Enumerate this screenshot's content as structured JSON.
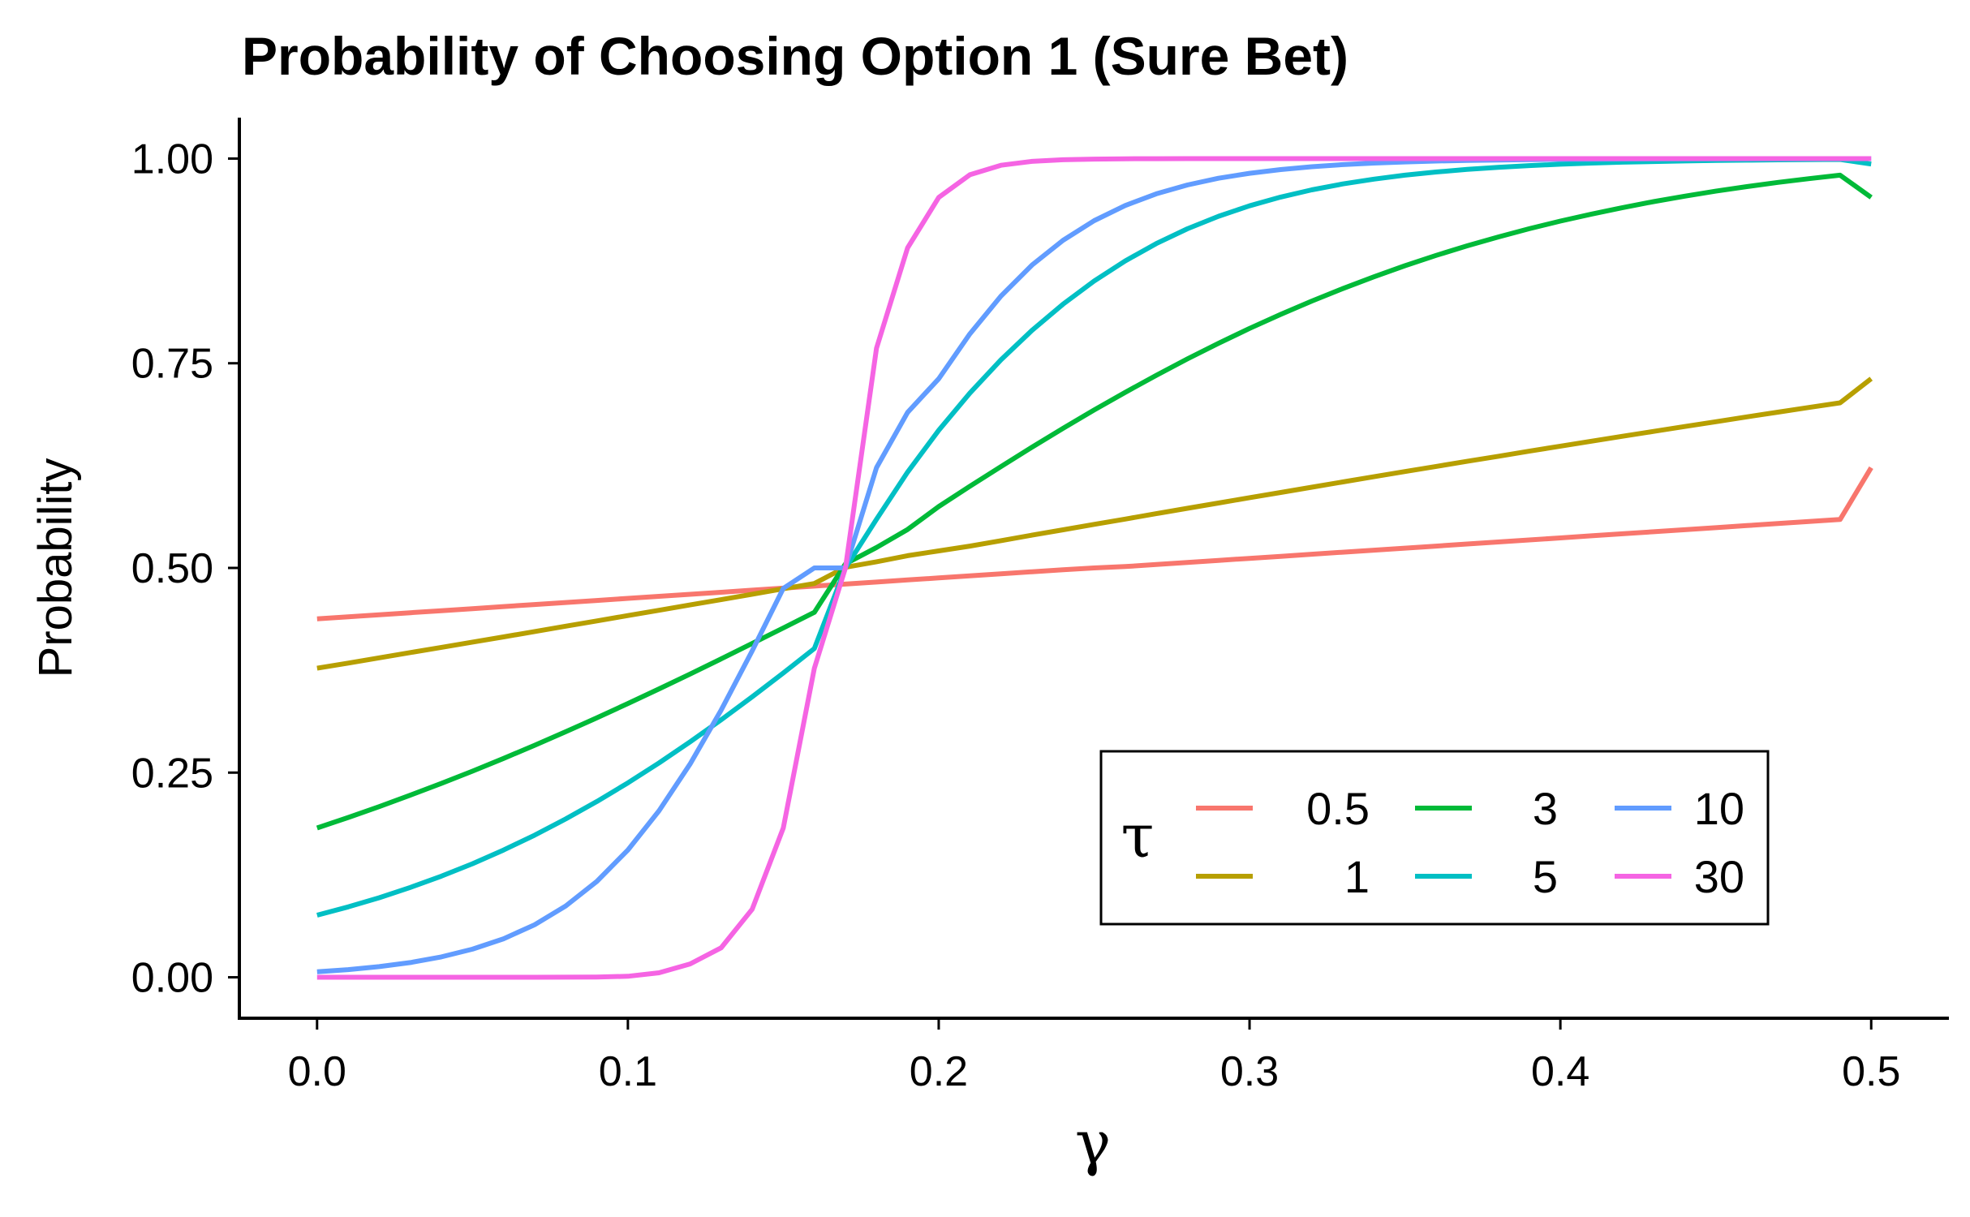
{
  "chart_data": {
    "type": "line",
    "title": "Probability of Choosing Option 1 (Sure Bet)",
    "xlabel": "γ",
    "ylabel": "Probability",
    "xlim": [
      -0.025,
      0.525
    ],
    "ylim": [
      -0.05,
      1.05
    ],
    "x_ticks": [
      0.0,
      0.1,
      0.2,
      0.3,
      0.4,
      0.5
    ],
    "x_tick_labels": [
      "0.0",
      "0.1",
      "0.2",
      "0.3",
      "0.4",
      "0.5"
    ],
    "y_ticks": [
      0.0,
      0.25,
      0.5,
      0.75,
      1.0
    ],
    "y_tick_labels": [
      "0.00",
      "0.25",
      "0.50",
      "0.75",
      "1.00"
    ],
    "grid": false,
    "legend": {
      "title": "τ",
      "position": "bottom-right",
      "columns": 3
    },
    "x": [
      0.0,
      0.01,
      0.02,
      0.03,
      0.04,
      0.05,
      0.06,
      0.07,
      0.08,
      0.09,
      0.1,
      0.11,
      0.12,
      0.13,
      0.14,
      0.15,
      0.16,
      0.17,
      0.18,
      0.19,
      0.2,
      0.21,
      0.22,
      0.23,
      0.24,
      0.25,
      0.26,
      0.27,
      0.28,
      0.29,
      0.3,
      0.31,
      0.32,
      0.33,
      0.34,
      0.35,
      0.36,
      0.37,
      0.38,
      0.39,
      0.4,
      0.41,
      0.42,
      0.43,
      0.44,
      0.45,
      0.46,
      0.47,
      0.48,
      0.49,
      0.5
    ],
    "series": [
      {
        "name": "0.5",
        "color": "#F8766D",
        "values": [
          0.4378,
          0.4403,
          0.4428,
          0.4453,
          0.4478,
          0.4503,
          0.4528,
          0.4553,
          0.4578,
          0.4603,
          0.4628,
          0.4653,
          0.4678,
          0.4703,
          0.4728,
          0.4753,
          0.4778,
          0.4803,
          0.4828,
          0.4853,
          0.4878,
          0.4903,
          0.4928,
          0.4953,
          0.4978,
          0.5,
          0.5017,
          0.5042,
          0.5067,
          0.5092,
          0.5117,
          0.5142,
          0.5167,
          0.5192,
          0.5217,
          0.5242,
          0.5267,
          0.5292,
          0.5317,
          0.5342,
          0.5367,
          0.5392,
          0.5417,
          0.5442,
          0.5467,
          0.5492,
          0.5517,
          0.5542,
          0.5567,
          0.5592,
          0.6225
        ]
      },
      {
        "name": "1",
        "color": "#B79F00",
        "values": [
          0.3775,
          0.3838,
          0.3902,
          0.3966,
          0.403,
          0.4094,
          0.4158,
          0.4223,
          0.4288,
          0.4353,
          0.4418,
          0.4483,
          0.4548,
          0.4613,
          0.4679,
          0.4745,
          0.481,
          0.5008,
          0.5075,
          0.515,
          0.5208,
          0.5267,
          0.5333,
          0.54,
          0.5466,
          0.5532,
          0.5597,
          0.5663,
          0.5728,
          0.5793,
          0.5858,
          0.5922,
          0.5986,
          0.605,
          0.6114,
          0.6177,
          0.624,
          0.6302,
          0.6364,
          0.6426,
          0.6487,
          0.6548,
          0.6608,
          0.6668,
          0.6727,
          0.6786,
          0.6845,
          0.6903,
          0.696,
          0.7017,
          0.7311
        ]
      },
      {
        "name": "3",
        "color": "#00BA38",
        "values": [
          0.1824,
          0.1952,
          0.2085,
          0.2224,
          0.2368,
          0.2518,
          0.2673,
          0.2834,
          0.2999,
          0.3169,
          0.3344,
          0.3522,
          0.3704,
          0.3889,
          0.4077,
          0.4267,
          0.4458,
          0.505,
          0.525,
          0.547,
          0.575,
          0.5997,
          0.6238,
          0.6475,
          0.6705,
          0.6929,
          0.7145,
          0.7353,
          0.7553,
          0.7743,
          0.7925,
          0.8097,
          0.8259,
          0.8412,
          0.8556,
          0.8691,
          0.8817,
          0.8934,
          0.9042,
          0.9143,
          0.9236,
          0.9322,
          0.9401,
          0.9474,
          0.9541,
          0.9602,
          0.9658,
          0.9709,
          0.9755,
          0.9797,
          0.9526
        ]
      },
      {
        "name": "5",
        "color": "#00BFC4",
        "values": [
          0.0759,
          0.086,
          0.0972,
          0.1097,
          0.1235,
          0.1387,
          0.1554,
          0.1736,
          0.1934,
          0.2147,
          0.2375,
          0.2618,
          0.2875,
          0.3145,
          0.3426,
          0.3717,
          0.4016,
          0.5,
          0.5595,
          0.617,
          0.6682,
          0.7135,
          0.7541,
          0.7902,
          0.8222,
          0.8504,
          0.875,
          0.8962,
          0.9142,
          0.9295,
          0.9423,
          0.953,
          0.9618,
          0.969,
          0.9749,
          0.9797,
          0.9836,
          0.9868,
          0.9894,
          0.9914,
          0.9931,
          0.9945,
          0.9956,
          0.9964,
          0.9971,
          0.9977,
          0.9981,
          0.9985,
          0.9988,
          0.999,
          0.9933
        ]
      },
      {
        "name": "10",
        "color": "#619CFF",
        "values": [
          0.0067,
          0.0094,
          0.013,
          0.018,
          0.0249,
          0.0343,
          0.047,
          0.0642,
          0.0871,
          0.1171,
          0.1555,
          0.2033,
          0.2605,
          0.3264,
          0.3988,
          0.475,
          0.5,
          0.5,
          0.6225,
          0.69,
          0.7311,
          0.7858,
          0.832,
          0.8699,
          0.9002,
          0.9241,
          0.9427,
          0.9569,
          0.9677,
          0.976,
          0.982,
          0.9866,
          0.99,
          0.9926,
          0.9945,
          0.9959,
          0.997,
          0.9978,
          0.9983,
          0.9988,
          0.9991,
          0.9993,
          0.9995,
          0.9996,
          0.9997,
          0.9998,
          0.9998,
          0.9999,
          0.9999,
          0.9999,
          0.9999
        ]
      },
      {
        "name": "30",
        "color": "#F564E3",
        "values": [
          0.0,
          0.0,
          0.0,
          0.0,
          0.0,
          0.0,
          0.0,
          0.0,
          0.0001,
          0.0003,
          0.0012,
          0.0055,
          0.0163,
          0.036,
          0.0832,
          0.1824,
          0.3775,
          0.5,
          0.7685,
          0.8909,
          0.9526,
          0.9802,
          0.9918,
          0.9966,
          0.9986,
          0.9994,
          0.9998,
          0.9999,
          1.0,
          1.0,
          1.0,
          1.0,
          1.0,
          1.0,
          1.0,
          1.0,
          1.0,
          1.0,
          1.0,
          1.0,
          1.0,
          1.0,
          1.0,
          1.0,
          1.0,
          1.0,
          1.0,
          1.0,
          1.0,
          1.0,
          1.0
        ]
      }
    ]
  }
}
